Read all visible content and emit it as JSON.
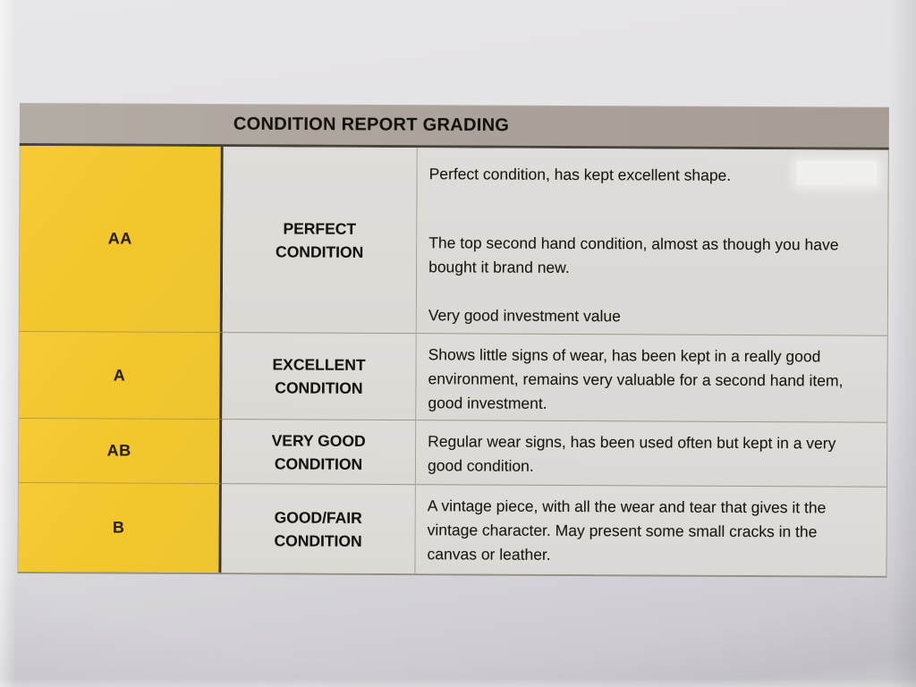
{
  "table": {
    "title": "CONDITION REPORT GRADING",
    "rows": [
      {
        "grade": "AA",
        "label_lines": [
          "PERFECT",
          "CONDITION"
        ],
        "description_paragraphs": [
          "Perfect condition, has kept excellent shape.",
          "The top second hand condition, almost as though you have bought it brand new.",
          "Very good investment value"
        ]
      },
      {
        "grade": "A",
        "label_lines": [
          "EXCELLENT",
          "CONDITION"
        ],
        "description_paragraphs": [
          "Shows little signs of wear, has been kept in a really good environment, remains very valuable for a second hand item, good investment."
        ]
      },
      {
        "grade": "AB",
        "label_lines": [
          "VERY GOOD",
          "CONDITION"
        ],
        "description_paragraphs": [
          "Regular wear signs, has been used often but kept in a very good condition."
        ]
      },
      {
        "grade": "B",
        "label_lines": [
          "GOOD/FAIR",
          "CONDITION"
        ],
        "description_paragraphs": [
          "A vintage piece, with all the wear and tear that gives it the vintage character. May present some small cracks in the canvas or leather."
        ]
      }
    ]
  },
  "colors": {
    "grade_column_yellow": "#F3C62D",
    "header_bar_gray": "#ABA39B",
    "header_border_dark": "#48423B",
    "cell_background_gray": "#DEDCD8",
    "paper_background": "#E3E2E4",
    "text_black": "#1B1814"
  }
}
